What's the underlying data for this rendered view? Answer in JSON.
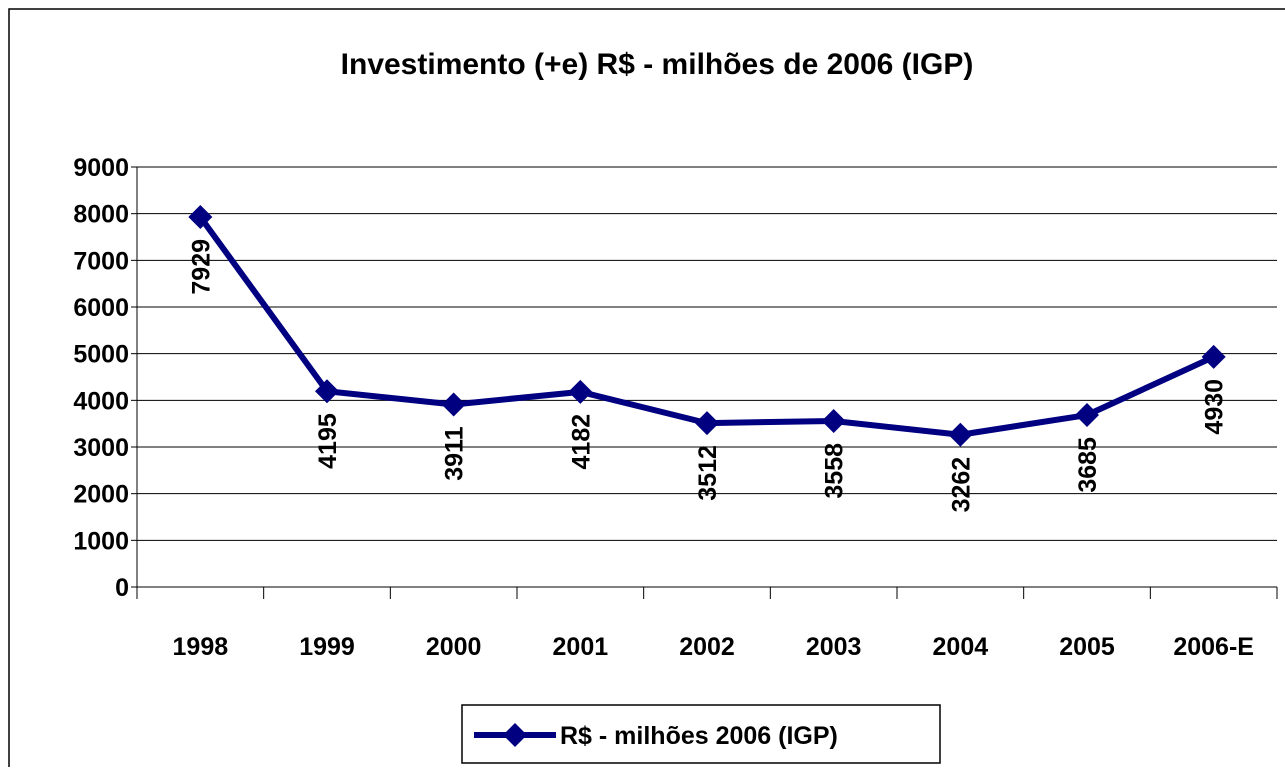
{
  "chart_data": {
    "type": "line",
    "title": "Investimento (+e) R$ - milhões de 2006 (IGP)",
    "categories": [
      "1998",
      "1999",
      "2000",
      "2001",
      "2002",
      "2003",
      "2004",
      "2005",
      "2006-E"
    ],
    "series": [
      {
        "name": "R$ - milhões 2006 (IGP)",
        "color": "#000080",
        "values": [
          7929,
          4195,
          3911,
          4182,
          3512,
          3558,
          3262,
          3685,
          4930
        ]
      }
    ],
    "ylim": [
      0,
      9000
    ],
    "yticks": [
      0,
      1000,
      2000,
      3000,
      4000,
      5000,
      6000,
      7000,
      8000,
      9000
    ],
    "grid": true,
    "legend": "bottom"
  }
}
